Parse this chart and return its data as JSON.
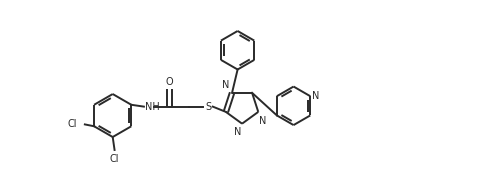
{
  "bg_color": "#ffffff",
  "line_color": "#2a2a2a",
  "line_width": 1.4,
  "figsize": [
    4.81,
    1.94
  ],
  "dpi": 100,
  "xlim": [
    0,
    10
  ],
  "ylim": [
    -1.0,
    4.2
  ],
  "font_size": 7.0
}
